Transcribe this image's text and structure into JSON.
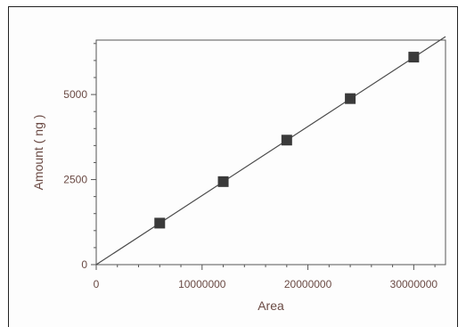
{
  "chart_data": {
    "type": "scatter",
    "title": "",
    "xlabel": "Area",
    "ylabel": "Amount ( ng )",
    "xlim": [
      0,
      33000000
    ],
    "ylim": [
      0,
      6600
    ],
    "x_ticks": [
      0,
      10000000,
      20000000,
      30000000
    ],
    "x_tick_labels": [
      "0",
      "10000000",
      "20000000",
      "30000000"
    ],
    "y_ticks": [
      0,
      2500,
      5000
    ],
    "y_tick_labels": [
      "0",
      "2500",
      "5000"
    ],
    "grid": false,
    "series": [
      {
        "type": "scatter",
        "marker": "square",
        "x": [
          6000000,
          12000000,
          18000000,
          24000000,
          30000000
        ],
        "y": [
          1220,
          2440,
          3660,
          4880,
          6100
        ]
      },
      {
        "type": "line",
        "x": [
          0,
          33000000
        ],
        "y": [
          0,
          6700
        ]
      }
    ],
    "colors": {
      "axis": "#555555",
      "marker": "#3a3a3a",
      "line": "#4a4a4a",
      "text": "#6a4a44"
    }
  }
}
